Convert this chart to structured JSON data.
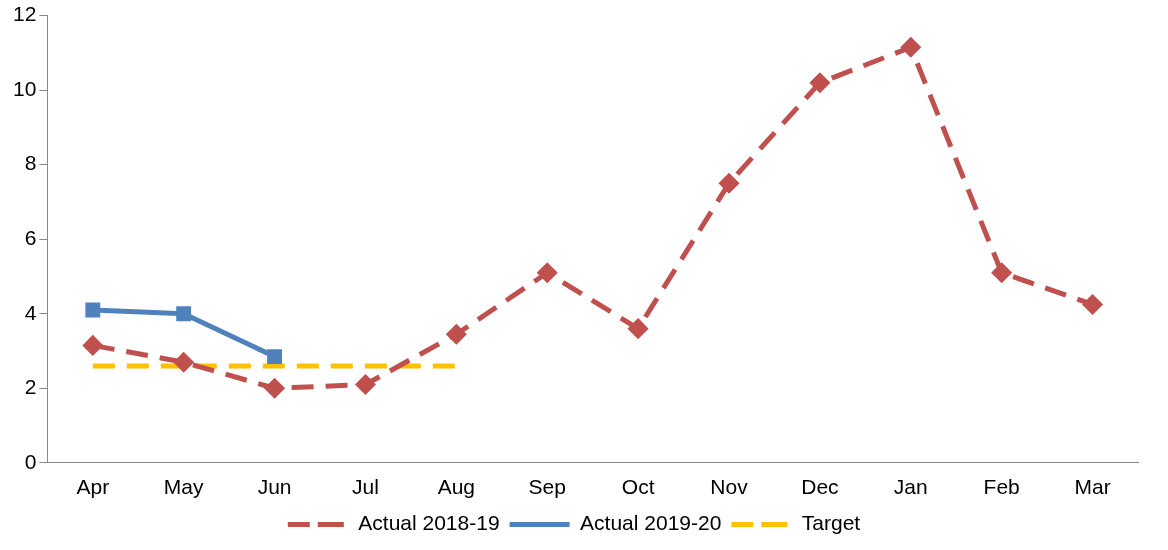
{
  "chart_data": {
    "type": "line",
    "categories": [
      "Apr",
      "May",
      "Jun",
      "Jul",
      "Aug",
      "Sep",
      "Oct",
      "Nov",
      "Dec",
      "Jan",
      "Feb",
      "Mar"
    ],
    "ylim": [
      0,
      12
    ],
    "yticks": [
      0,
      2,
      4,
      6,
      8,
      10,
      12
    ],
    "grid": false,
    "legend": "bottom",
    "series": [
      {
        "name": "Actual 2018-19",
        "color": "#c0504d",
        "marker": "diamond",
        "line_style": "dashed",
        "values": [
          3.15,
          2.7,
          2,
          2.1,
          3.45,
          5.1,
          3.6,
          7.5,
          10.2,
          11.15,
          5.1,
          4.25
        ]
      },
      {
        "name": "Actual 2019-20",
        "color": "#4f81bd",
        "marker": "square",
        "line_style": "solid",
        "values": [
          4.1,
          4,
          2.85,
          null,
          null,
          null,
          null,
          null,
          null,
          null,
          null,
          null
        ]
      },
      {
        "name": "Target",
        "color": "#ffc000",
        "marker": "none",
        "line_style": "dashed",
        "values": [
          2.6,
          2.6,
          2.6,
          2.6,
          2.6,
          null,
          null,
          null,
          null,
          null,
          null,
          null
        ]
      }
    ]
  }
}
